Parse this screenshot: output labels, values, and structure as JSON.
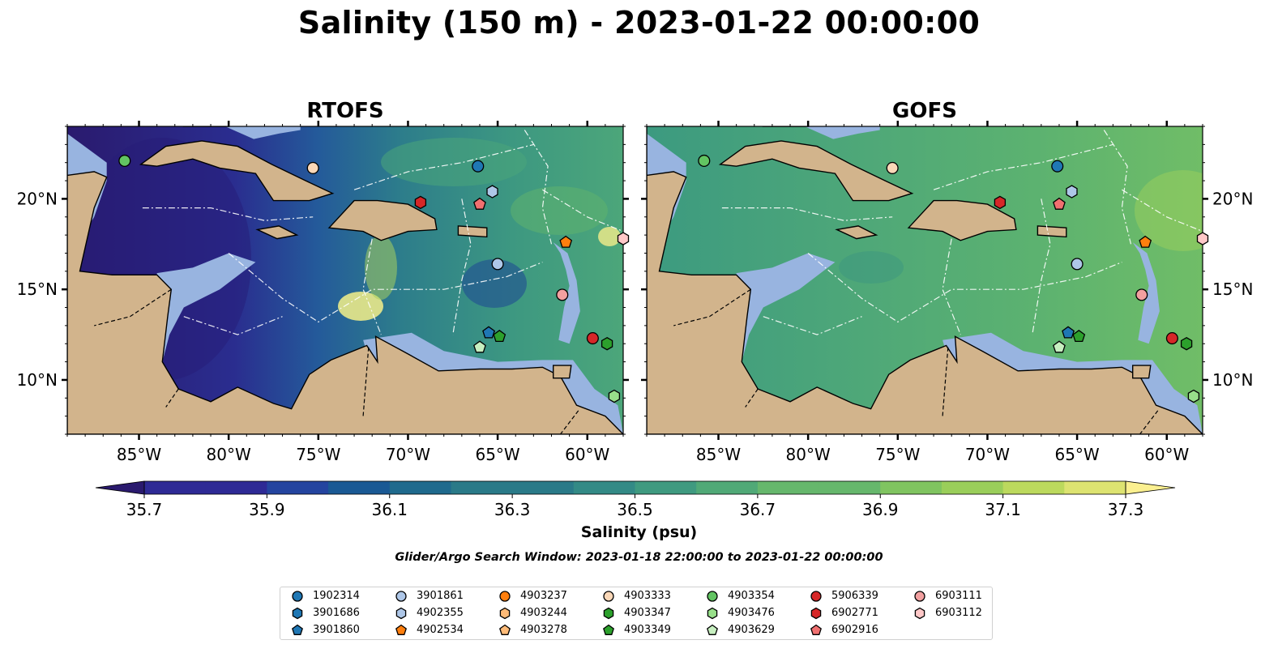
{
  "figure": {
    "title": "Salinity (150 m) - 2023-01-22 00:00:00",
    "panels": [
      {
        "title": "RTOFS"
      },
      {
        "title": "GOFS"
      }
    ],
    "lon_ticks": [
      "85°W",
      "80°W",
      "75°W",
      "70°W",
      "65°W",
      "60°W"
    ],
    "lat_ticks": [
      "20°N",
      "15°N",
      "10°N"
    ],
    "extent": {
      "lon": [
        -89,
        -58
      ],
      "lat": [
        7,
        24
      ]
    },
    "colorbar": {
      "label": "Salinity (psu)",
      "ticks": [
        "35.7",
        "35.9",
        "36.1",
        "36.3",
        "36.5",
        "36.7",
        "36.9",
        "37.1",
        "37.3"
      ],
      "range": [
        35.7,
        37.3
      ],
      "colormap": "haline",
      "colors": [
        "#2a1a6e",
        "#2e2a95",
        "#24449f",
        "#1a5994",
        "#1f6a8d",
        "#2a7a88",
        "#338a86",
        "#3f9a80",
        "#50a977",
        "#66b76c",
        "#80c460",
        "#9ace5a",
        "#bcd95d",
        "#dde371",
        "#fbf090"
      ]
    },
    "search_window": "Glider/Argo Search Window: 2023-01-18 22:00:00 to 2023-01-22 00:00:00",
    "colors": {
      "land": "#d2b48c",
      "shelf": "#98b4e0"
    }
  },
  "legend": [
    {
      "id": "1902314",
      "shape": "circle",
      "color": "#1f77b4"
    },
    {
      "id": "3901686",
      "shape": "hexagon",
      "color": "#1f77b4"
    },
    {
      "id": "3901860",
      "shape": "pentagon",
      "color": "#1f77b4"
    },
    {
      "id": "3901861",
      "shape": "circle",
      "color": "#aec7e8"
    },
    {
      "id": "4902355",
      "shape": "hexagon",
      "color": "#aec7e8"
    },
    {
      "id": "4902534",
      "shape": "pentagon",
      "color": "#ff7f0e"
    },
    {
      "id": "4903237",
      "shape": "circle",
      "color": "#ff7f0e"
    },
    {
      "id": "4903244",
      "shape": "hexagon",
      "color": "#ffbb78"
    },
    {
      "id": "4903278",
      "shape": "pentagon",
      "color": "#ffbb78"
    },
    {
      "id": "4903333",
      "shape": "circle",
      "color": "#fbd8b8"
    },
    {
      "id": "4903347",
      "shape": "hexagon",
      "color": "#2ca02c"
    },
    {
      "id": "4903349",
      "shape": "pentagon",
      "color": "#2ca02c"
    },
    {
      "id": "4903354",
      "shape": "circle",
      "color": "#62c462"
    },
    {
      "id": "4903476",
      "shape": "hexagon",
      "color": "#98df8a"
    },
    {
      "id": "4903629",
      "shape": "pentagon",
      "color": "#c7efc0"
    },
    {
      "id": "5906339",
      "shape": "circle",
      "color": "#d62728"
    },
    {
      "id": "6902771",
      "shape": "hexagon",
      "color": "#d62728"
    },
    {
      "id": "6902916",
      "shape": "pentagon",
      "color": "#f07070"
    },
    {
      "id": "6903111",
      "shape": "circle",
      "color": "#f2a0a0"
    },
    {
      "id": "6903112",
      "shape": "hexagon",
      "color": "#ffc8c8"
    }
  ],
  "floats": [
    {
      "id": "4903354",
      "lon": -85.8,
      "lat": 22.1
    },
    {
      "id": "4903333",
      "lon": -75.3,
      "lat": 21.7
    },
    {
      "id": "1902314",
      "lon": -66.1,
      "lat": 21.8
    },
    {
      "id": "4902355",
      "lon": -65.3,
      "lat": 20.4
    },
    {
      "id": "6902771",
      "lon": -69.3,
      "lat": 19.8
    },
    {
      "id": "6902916",
      "lon": -66.0,
      "lat": 19.7
    },
    {
      "id": "4902534",
      "lon": -61.2,
      "lat": 17.6
    },
    {
      "id": "6903112",
      "lon": -58.0,
      "lat": 17.8
    },
    {
      "id": "3901861",
      "lon": -65.0,
      "lat": 16.4
    },
    {
      "id": "6903111",
      "lon": -61.4,
      "lat": 14.7
    },
    {
      "id": "3901860",
      "lon": -65.5,
      "lat": 12.6
    },
    {
      "id": "4903349",
      "lon": -64.9,
      "lat": 12.4
    },
    {
      "id": "4903629",
      "lon": -66.0,
      "lat": 11.8
    },
    {
      "id": "5906339",
      "lon": -59.7,
      "lat": 12.3
    },
    {
      "id": "4903347",
      "lon": -58.9,
      "lat": 12.0
    },
    {
      "id": "4903476",
      "lon": -58.5,
      "lat": 9.1
    }
  ]
}
